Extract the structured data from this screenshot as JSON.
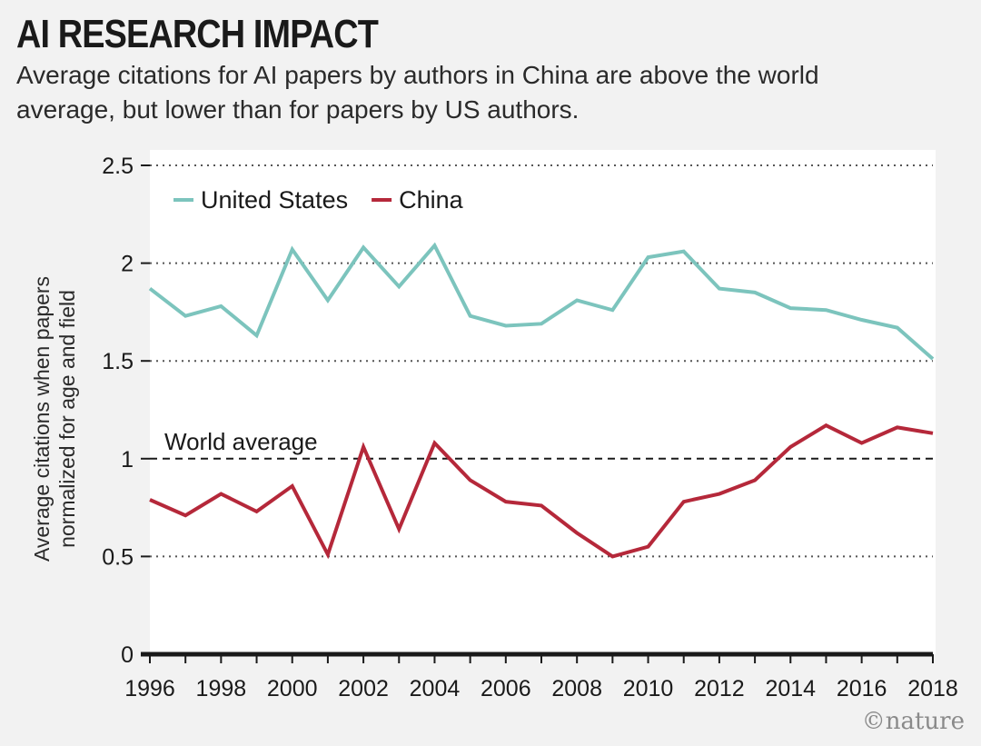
{
  "header": {
    "title": "AI RESEARCH IMPACT",
    "subtitle": "Average citations for AI papers by authors in China are above the world average, but lower than for papers by US authors."
  },
  "credit": "©nature",
  "chart_data": {
    "type": "line",
    "title": "AI RESEARCH IMPACT",
    "subtitle": "Average citations for AI papers by authors in China are above the world average, but lower than for papers by US authors.",
    "ylabel": "Average citations when papers normalized for age and field",
    "xlabel": "",
    "x": [
      1996,
      1997,
      1998,
      1999,
      2000,
      2001,
      2002,
      2003,
      2004,
      2005,
      2006,
      2007,
      2008,
      2009,
      2010,
      2011,
      2012,
      2013,
      2014,
      2015,
      2016,
      2017,
      2018
    ],
    "xticks": [
      "1996",
      "1998",
      "2000",
      "2002",
      "2004",
      "2006",
      "2008",
      "2010",
      "2012",
      "2014",
      "2016",
      "2018"
    ],
    "xlim": [
      1996,
      2018
    ],
    "ylim": [
      0,
      2.5
    ],
    "yticks": [
      "0",
      "0.5",
      "1",
      "1.5",
      "2",
      "2.5"
    ],
    "grid": true,
    "legend": "top-left",
    "series": [
      {
        "name": "United States",
        "color": "#7cc4bd",
        "values": [
          1.87,
          1.73,
          1.78,
          1.63,
          2.07,
          1.81,
          2.08,
          1.88,
          2.09,
          1.73,
          1.68,
          1.69,
          1.81,
          1.76,
          2.03,
          2.06,
          1.87,
          1.85,
          1.77,
          1.76,
          1.71,
          1.67,
          1.51
        ]
      },
      {
        "name": "China",
        "color": "#b5283a",
        "values": [
          0.79,
          0.71,
          0.82,
          0.73,
          0.86,
          0.51,
          1.06,
          0.64,
          1.08,
          0.89,
          0.78,
          0.76,
          0.62,
          0.5,
          0.55,
          0.78,
          0.82,
          0.89,
          1.06,
          1.17,
          1.08,
          1.16,
          1.13
        ]
      }
    ],
    "annotations": [
      {
        "text": "World average",
        "y": 1,
        "style": "dashed"
      }
    ]
  }
}
